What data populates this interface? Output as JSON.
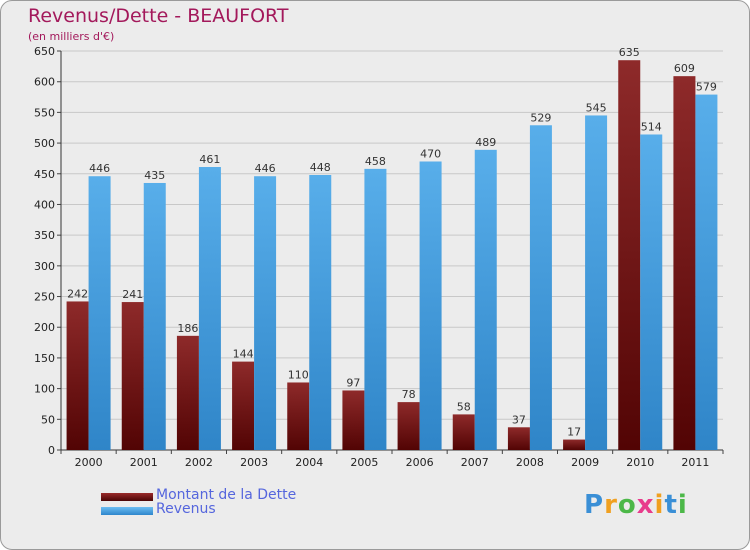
{
  "header": {
    "title": "Revenus/Dette - BEAUFORT",
    "subtitle": "(en milliers d'€)"
  },
  "colors": {
    "dette": "#7a1a1a",
    "revenus": "#4ea6e6",
    "title": "#a3195b",
    "legend_text": "#5566dd",
    "grid": "#c8c8c8"
  },
  "legend": {
    "items": [
      {
        "label": "Montant de la Dette",
        "color": "#6e0f0f"
      },
      {
        "label": "Revenus",
        "color": "#4ea6e6"
      }
    ]
  },
  "logo": {
    "text": "Proxiti",
    "letters": [
      {
        "ch": "P",
        "color": "#3a8fd6"
      },
      {
        "ch": "r",
        "color": "#f0a020"
      },
      {
        "ch": "o",
        "color": "#4cb848"
      },
      {
        "ch": "x",
        "color": "#e83c8c"
      },
      {
        "ch": "i",
        "color": "#f0a020"
      },
      {
        "ch": "t",
        "color": "#3a8fd6"
      },
      {
        "ch": "i",
        "color": "#4cb848"
      }
    ]
  },
  "chart_data": {
    "type": "bar",
    "title": "Revenus/Dette - BEAUFORT",
    "subtitle": "(en milliers d'€)",
    "categories": [
      "2000",
      "2001",
      "2002",
      "2003",
      "2004",
      "2005",
      "2006",
      "2007",
      "2008",
      "2009",
      "2010",
      "2011"
    ],
    "series": [
      {
        "name": "Montant de la Dette",
        "values": [
          242,
          241,
          186,
          144,
          110,
          97,
          78,
          58,
          37,
          17,
          635,
          609
        ]
      },
      {
        "name": "Revenus",
        "values": [
          446,
          435,
          461,
          446,
          448,
          458,
          470,
          489,
          529,
          545,
          514,
          579
        ]
      }
    ],
    "ylim": [
      0,
      650
    ],
    "yticks": [
      0,
      50,
      100,
      150,
      200,
      250,
      300,
      350,
      400,
      450,
      500,
      550,
      600,
      650
    ],
    "grid": true,
    "legend_position": "bottom-left"
  }
}
